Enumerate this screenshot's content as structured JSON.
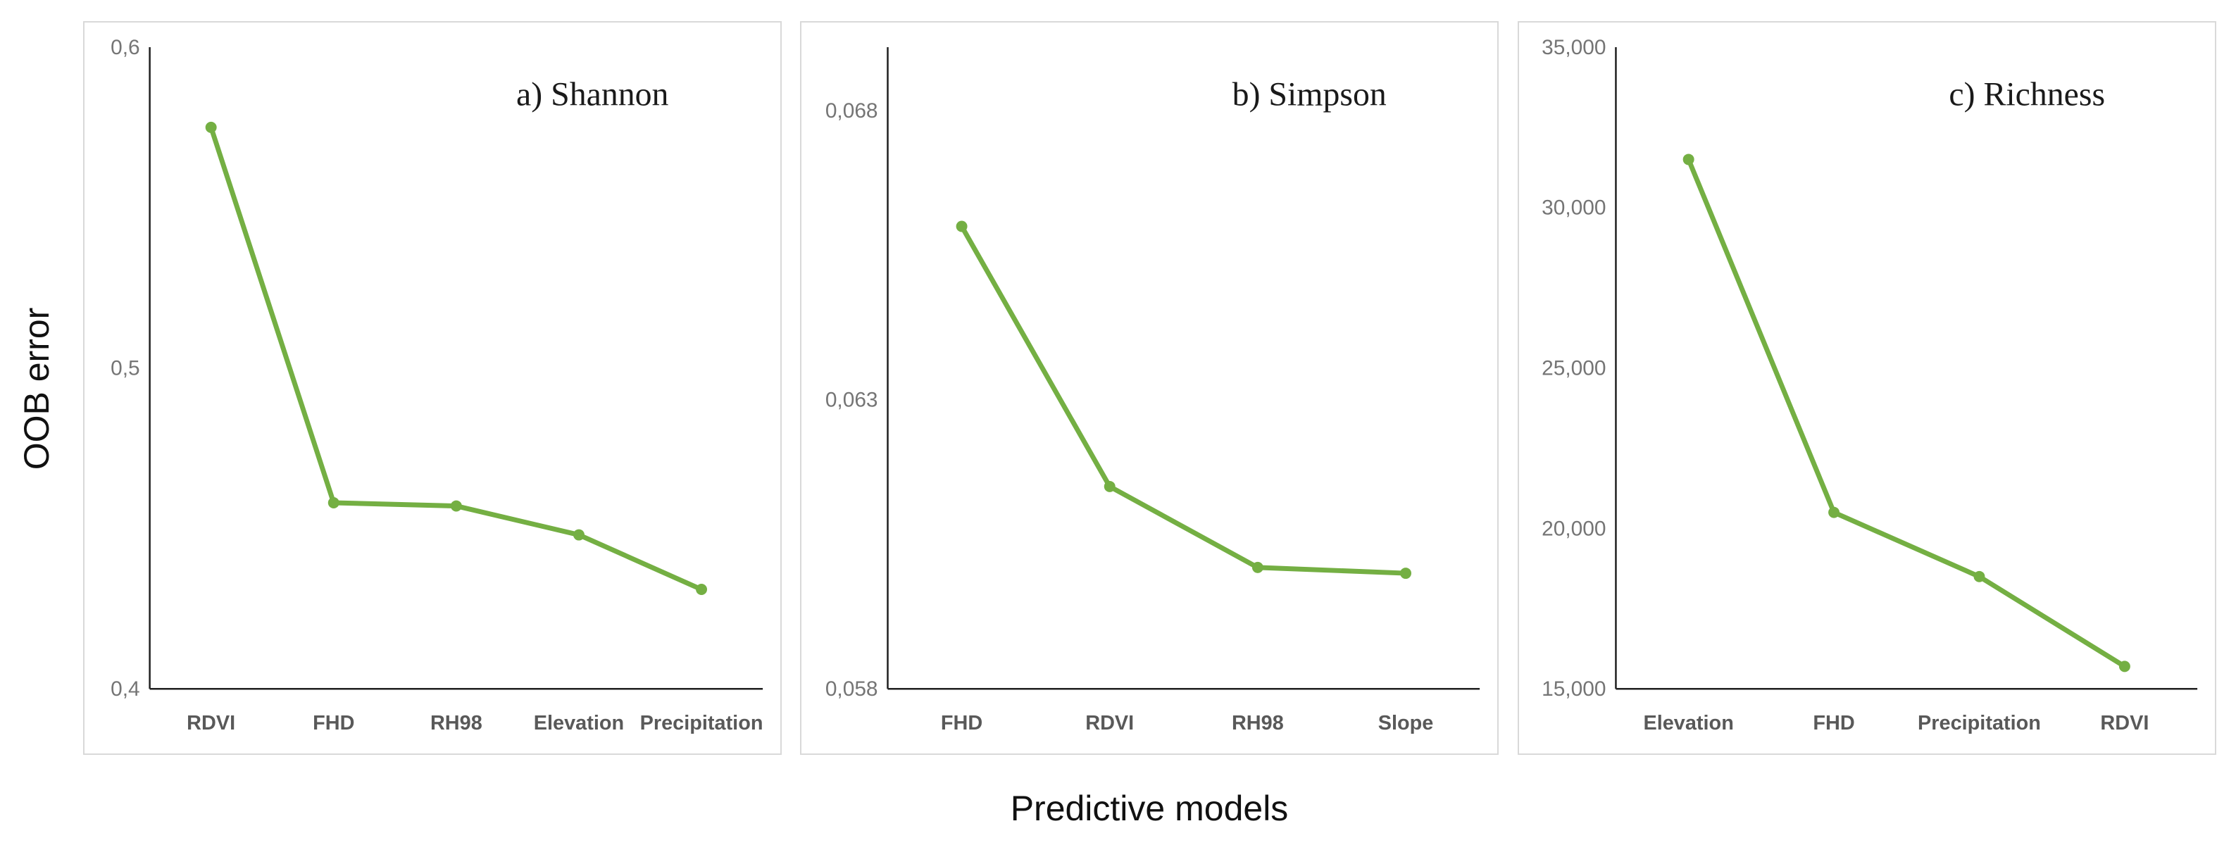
{
  "axis_titles": {
    "y": "OOB error",
    "x": "Predictive models"
  },
  "style": {
    "line_color": "#74AF43",
    "marker_color": "#74AF43",
    "axis_line_color": "#1f1f1f",
    "tick_label_color": "#757575",
    "category_label_color": "#595959",
    "title_color": "#1a1a1a",
    "panel_border_color": "#d9d9d9",
    "background_color": "#ffffff"
  },
  "chart_data": [
    {
      "type": "line",
      "title": "a) Shannon",
      "categories": [
        "RDVI",
        "FHD",
        "RH98",
        "Elevation",
        "Precipitation"
      ],
      "values": [
        0.575,
        0.458,
        0.457,
        0.448,
        0.431
      ],
      "ylim": [
        0.4,
        0.6
      ],
      "y_ticks": [
        {
          "value": 0.6,
          "label": "0,6"
        },
        {
          "value": 0.5,
          "label": "0,5"
        },
        {
          "value": 0.4,
          "label": "0,4"
        }
      ],
      "xlabel": "",
      "ylabel": "OOB error",
      "grid": false,
      "legend": "none"
    },
    {
      "type": "line",
      "title": "b) Simpson",
      "categories": [
        "FHD",
        "RDVI",
        "RH98",
        "Slope"
      ],
      "values": [
        0.066,
        0.0615,
        0.0601,
        0.06
      ],
      "ylim": [
        0.058,
        0.0691
      ],
      "y_ticks": [
        {
          "value": 0.068,
          "label": "0,068"
        },
        {
          "value": 0.063,
          "label": "0,063"
        },
        {
          "value": 0.058,
          "label": "0,058"
        }
      ],
      "xlabel": "",
      "ylabel": "OOB error",
      "grid": false,
      "legend": "none"
    },
    {
      "type": "line",
      "title": "c) Richness",
      "categories": [
        "Elevation",
        "FHD",
        "Precipitation",
        "RDVI"
      ],
      "values": [
        31500,
        20500,
        18500,
        15700
      ],
      "ylim": [
        15000,
        35000
      ],
      "y_ticks": [
        {
          "value": 35000,
          "label": "35,000"
        },
        {
          "value": 30000,
          "label": "30,000"
        },
        {
          "value": 25000,
          "label": "25,000"
        },
        {
          "value": 20000,
          "label": "20,000"
        },
        {
          "value": 15000,
          "label": "15,000"
        }
      ],
      "xlabel": "",
      "ylabel": "OOB error",
      "grid": false,
      "legend": "none"
    }
  ]
}
